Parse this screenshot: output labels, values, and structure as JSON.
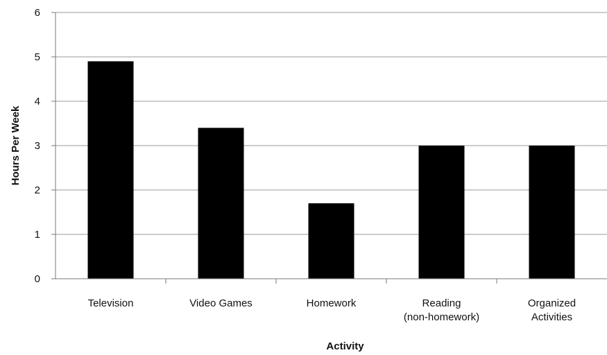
{
  "chart_data": {
    "type": "bar",
    "categories": [
      [
        "Television"
      ],
      [
        "Video Games"
      ],
      [
        "Homework"
      ],
      [
        "Reading",
        "(non-homework)"
      ],
      [
        "Organized",
        "Activities"
      ]
    ],
    "values": [
      4.9,
      3.4,
      1.7,
      3.0,
      3.0
    ],
    "title": "",
    "xlabel": "Activity",
    "ylabel": "Hours Per Week",
    "ylim": [
      0,
      6
    ],
    "yticks": [
      "0",
      "1",
      "2",
      "3",
      "4",
      "5",
      "6"
    ],
    "grid": true,
    "legend": "none",
    "colors": {
      "bar": "#000000",
      "grid": "#9a9a9a",
      "axis": "#777777"
    }
  }
}
